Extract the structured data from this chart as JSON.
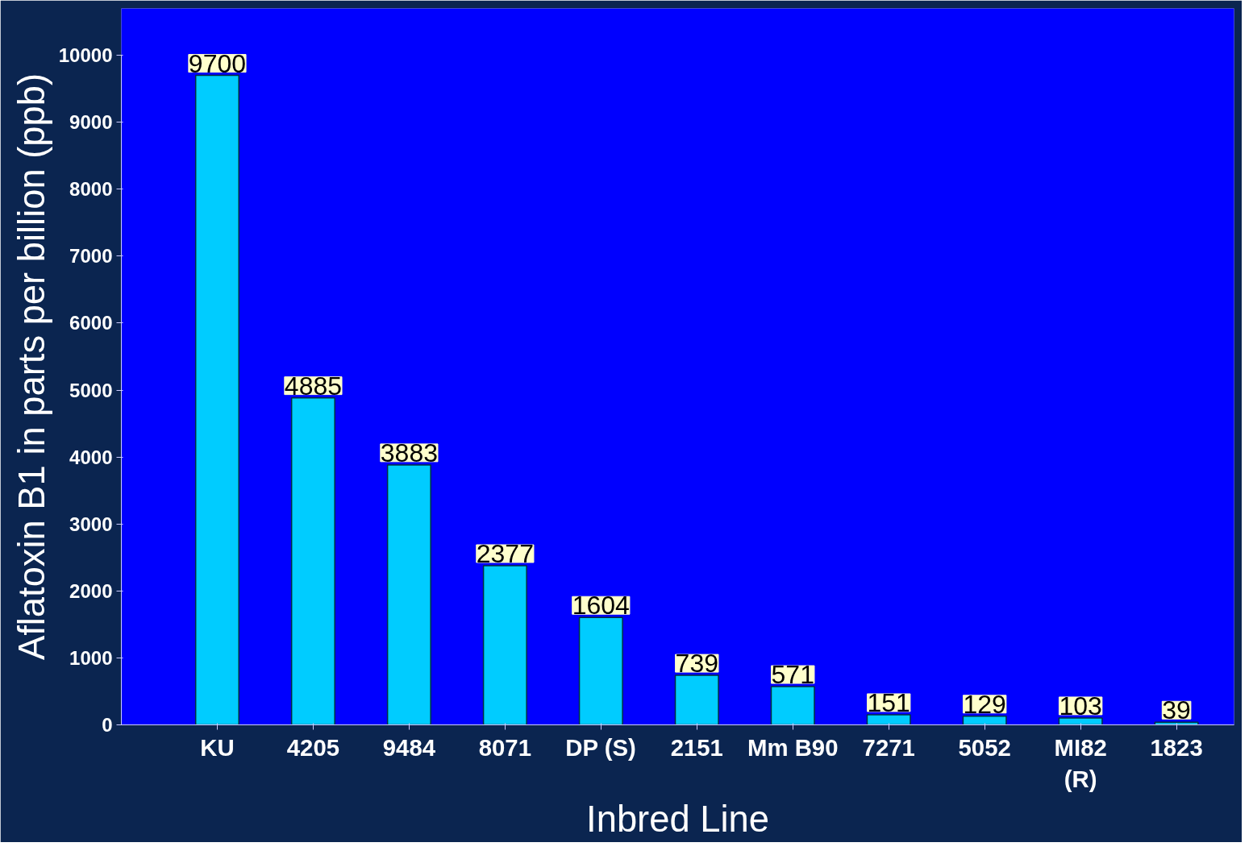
{
  "chart_data": {
    "type": "bar",
    "xlabel": "Inbred Line",
    "ylabel": "Aflatoxin B1 in parts per billion (ppb)",
    "categories": [
      "KU",
      "4205",
      "9484",
      "8071",
      "DP (S)",
      "2151",
      "Mm B90",
      "7271",
      "5052",
      "MI82\n(R)",
      "1823"
    ],
    "values": [
      9700,
      4885,
      3883,
      2377,
      1604,
      739,
      571,
      151,
      129,
      103,
      39
    ],
    "color": "#00ccff",
    "ylim": [
      0,
      10000
    ],
    "yticks": [
      0,
      1000,
      2000,
      3000,
      4000,
      5000,
      6000,
      7000,
      8000,
      9000,
      10000
    ],
    "data_labels": true,
    "grid": false
  }
}
